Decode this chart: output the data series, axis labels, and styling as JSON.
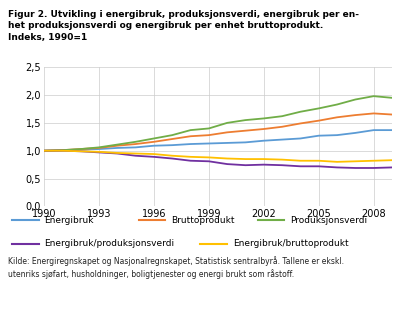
{
  "title": "Figur 2. Utvikling i energibruk, produksjonsverdi, energibruk per en-\nhet produksjonsverdi og energibruk per enhet bruttoprodukt.\nIndeks, 1990=1",
  "years": [
    1990,
    1991,
    1992,
    1993,
    1994,
    1995,
    1996,
    1997,
    1998,
    1999,
    2000,
    2001,
    2002,
    2003,
    2004,
    2005,
    2006,
    2007,
    2008,
    2009
  ],
  "energibruk": [
    1.0,
    1.01,
    1.02,
    1.03,
    1.05,
    1.06,
    1.09,
    1.1,
    1.12,
    1.13,
    1.14,
    1.15,
    1.18,
    1.2,
    1.22,
    1.27,
    1.28,
    1.32,
    1.37,
    1.37
  ],
  "bruttoprodukt": [
    1.0,
    1.01,
    1.03,
    1.05,
    1.09,
    1.12,
    1.16,
    1.21,
    1.26,
    1.28,
    1.33,
    1.36,
    1.39,
    1.43,
    1.49,
    1.54,
    1.6,
    1.64,
    1.67,
    1.65
  ],
  "produksjonsverdi": [
    1.0,
    1.01,
    1.03,
    1.06,
    1.11,
    1.16,
    1.22,
    1.28,
    1.37,
    1.4,
    1.5,
    1.55,
    1.58,
    1.62,
    1.7,
    1.76,
    1.83,
    1.92,
    1.98,
    1.95
  ],
  "energibruk_prod": [
    1.0,
    1.0,
    0.99,
    0.97,
    0.95,
    0.91,
    0.89,
    0.86,
    0.82,
    0.81,
    0.76,
    0.74,
    0.75,
    0.74,
    0.72,
    0.72,
    0.7,
    0.69,
    0.69,
    0.7
  ],
  "energibruk_brutto": [
    1.0,
    1.0,
    0.99,
    0.98,
    0.96,
    0.95,
    0.94,
    0.91,
    0.89,
    0.88,
    0.86,
    0.85,
    0.85,
    0.84,
    0.82,
    0.82,
    0.8,
    0.81,
    0.82,
    0.83
  ],
  "colors": {
    "energibruk": "#5b9bd5",
    "bruttoprodukt": "#ed7d31",
    "produksjonsverdi": "#70ad47",
    "energibruk_prod": "#7030a0",
    "energibruk_brutto": "#ffc000"
  },
  "ylabel_ticks": [
    0.0,
    0.5,
    1.0,
    1.5,
    2.0,
    2.5
  ],
  "xticks": [
    1990,
    1993,
    1996,
    1999,
    2002,
    2005,
    2008
  ],
  "ylim": [
    0.0,
    2.5
  ],
  "source": "Kilde: Energiregnskapet og Nasjonalregnskapet, Statistisk sentralbyrå. Tallene er ekskl.\nutenriks sjøfart, husholdninger, boligtjenester og energi brukt som råstoff."
}
